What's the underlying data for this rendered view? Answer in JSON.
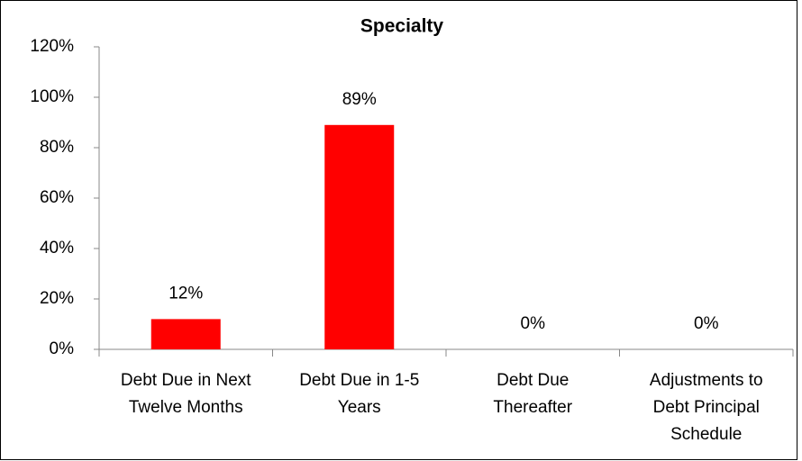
{
  "chart_data": {
    "type": "bar",
    "title": "Specialty",
    "categories": [
      "Debt Due in Next Twelve Months",
      "Debt Due in 1-5 Years",
      "Debt Due Thereafter",
      "Adjustments to Debt Principal Schedule"
    ],
    "values": [
      12,
      89,
      0,
      0
    ],
    "value_labels": [
      "12%",
      "89%",
      "0%",
      "0%"
    ],
    "color": "#ff0000",
    "ylim": [
      0,
      120
    ],
    "yticks": [
      {
        "value": 0,
        "label": "0%"
      },
      {
        "value": 20,
        "label": "20%"
      },
      {
        "value": 40,
        "label": "40%"
      },
      {
        "value": 60,
        "label": "60%"
      },
      {
        "value": 80,
        "label": "80%"
      },
      {
        "value": 100,
        "label": "100%"
      },
      {
        "value": 120,
        "label": "120%"
      }
    ],
    "grid": false
  }
}
